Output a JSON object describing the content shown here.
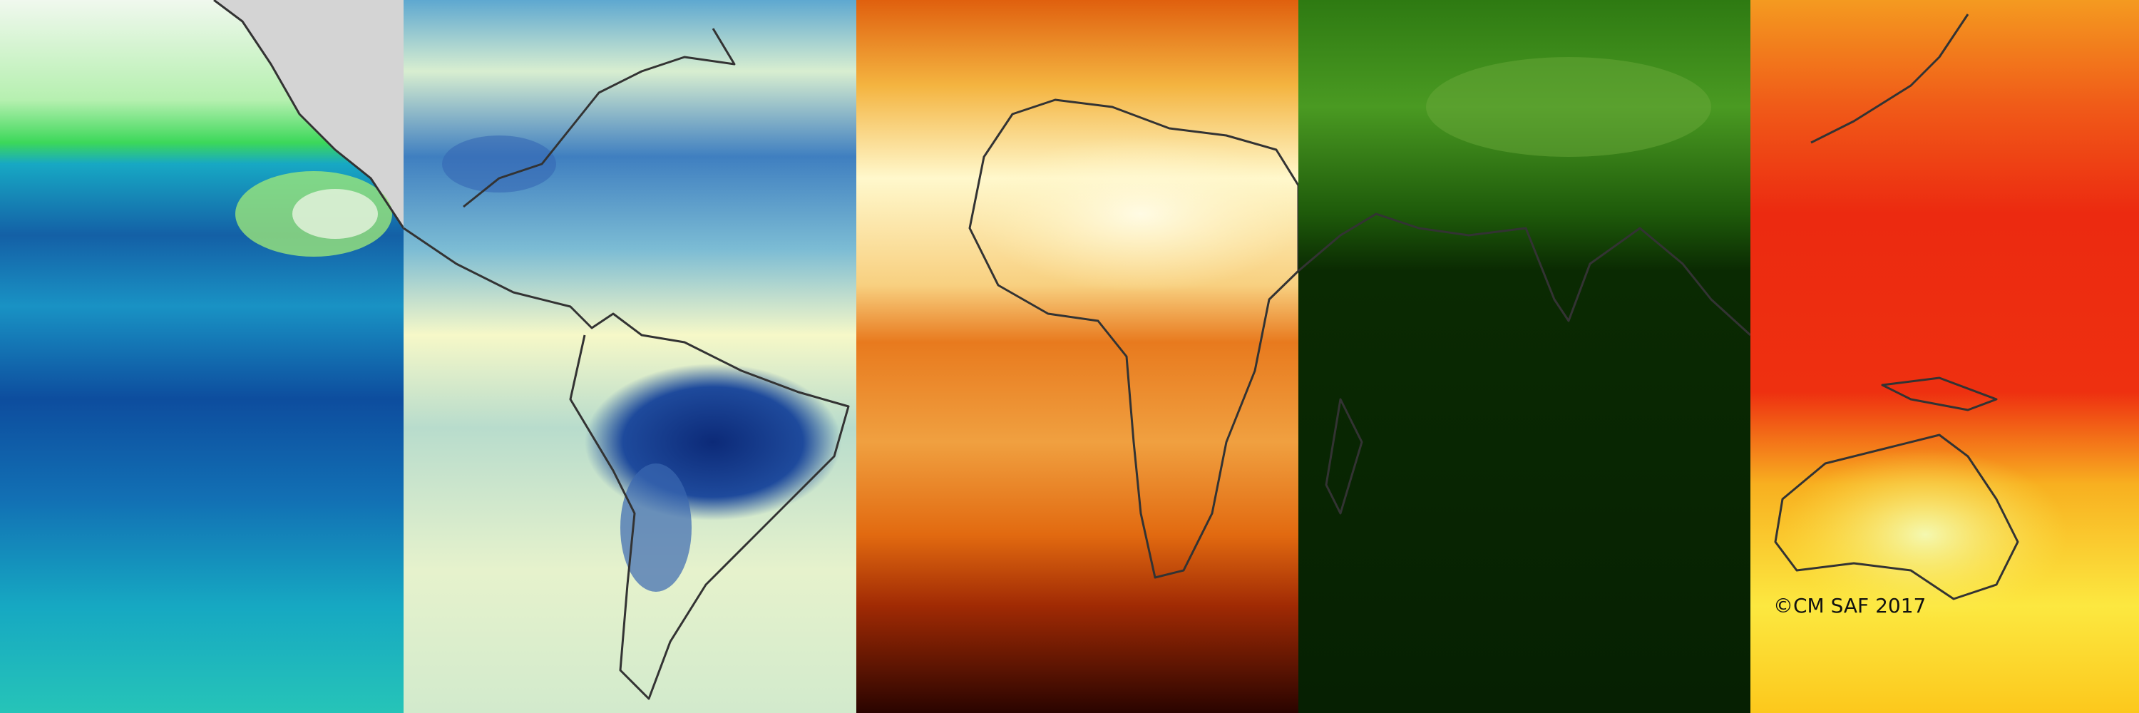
{
  "credit": {
    "text": "©CM SAF 2017"
  }
}
